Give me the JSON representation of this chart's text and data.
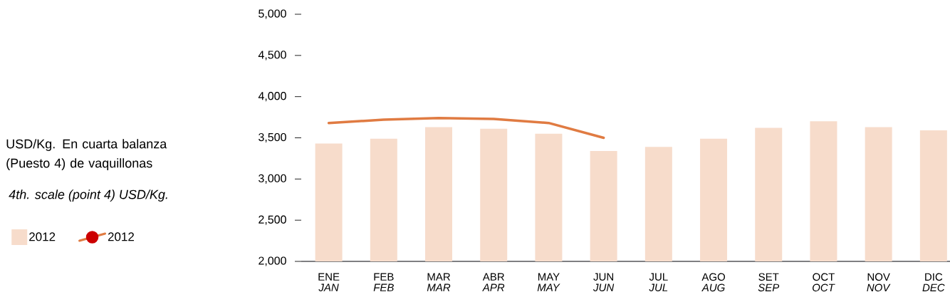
{
  "chart_data": {
    "type": "bar",
    "title": "USD/Kg. En cuarta balanza (Puesto 4) de vaquillonas",
    "subtitle": "4th. scale (point 4) USD/Kg.",
    "categories": [
      "ENE *JAN*",
      "FEB *FEB*",
      "MAR *MAR*",
      "ABR *APR*",
      "MAY *MAY*",
      "JUN *JUN*",
      "JUL *JUL*",
      "AGO *AUG*",
      "SET *SEP*",
      "OCT *OCT*",
      "NOV *NOV*",
      "DIC *DEC*"
    ],
    "series": [
      {
        "name": "2012",
        "color": "#f7dccb",
        "values": [
          3430,
          3490,
          3630,
          3610,
          3550,
          3340,
          3390,
          3490,
          3620,
          3700,
          3630,
          3590
        ]
      },
      {
        "name": "2012",
        "type": "line",
        "color": "#e07b42",
        "values": [
          3680,
          3720,
          3740,
          3730,
          3680,
          3500,
          null,
          null,
          null,
          null,
          null,
          null
        ]
      }
    ],
    "ylim": [
      2000,
      5000
    ],
    "yticks": [
      {
        "value": 2000,
        "label": "2,000"
      },
      {
        "value": 2500,
        "label": "2,500"
      },
      {
        "value": 3000,
        "label": "3,000"
      },
      {
        "value": 3500,
        "label": "3,500"
      },
      {
        "value": 4000,
        "label": "4,000"
      },
      {
        "value": 4500,
        "label": "4,500"
      },
      {
        "value": 5000,
        "label": "5,000"
      }
    ],
    "legend": "left",
    "grid": false
  }
}
